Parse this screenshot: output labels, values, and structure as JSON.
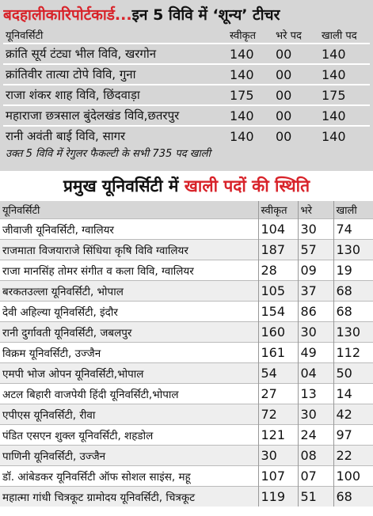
{
  "header": {
    "title_red": "बदहालीकारिपोर्टकार्ड...",
    "title_black": "इन 5 विवि में ‘शून्य’ टीचर"
  },
  "table1": {
    "columns": [
      "यूनिवर्सिटी",
      "स्वीकृत",
      "भरे पद",
      "खाली पद"
    ],
    "rows": [
      [
        "क्रांति सूर्य टंट्या भील विवि, खरगोन",
        "140",
        "00",
        "140"
      ],
      [
        "क्रांतिवीर तात्या टोपे विवि, गुना",
        "140",
        "00",
        "140"
      ],
      [
        "राजा शंकर शाह विवि, छिंदवाड़ा",
        "175",
        "00",
        "175"
      ],
      [
        "महाराजा छत्रसाल बुंदेलखंड विवि,छतरपुर",
        "140",
        "00",
        "140"
      ],
      [
        "रानी अवंती बाई विवि, सागर",
        "140",
        "00",
        "140"
      ]
    ],
    "note": "उक्त 5 विवि में रेगुलर फैकल्टी के सभी 735 पद खाली"
  },
  "section2": {
    "title_black": "प्रमुख यूनिवर्सिटी में ",
    "title_red": "खाली पदों की स्थिति"
  },
  "table2": {
    "columns": [
      "यूनिवर्सिटी",
      "स्वीकृत",
      "भरे",
      "खाली"
    ],
    "rows": [
      [
        "जीवाजी यूनिवर्सिटी, ग्वालियर",
        "104",
        "30",
        "74"
      ],
      [
        "राजमाता विजयाराजे सिंधिया कृषि विवि ग्वालियर",
        "187",
        "57",
        "130"
      ],
      [
        "राजा मानसिंह तोमर संगीत व कला विवि, ग्वालियर",
        "28",
        "09",
        "19"
      ],
      [
        "बरकतउल्ला यूनिवर्सिटी, भोपाल",
        "105",
        "37",
        "68"
      ],
      [
        "देवी अहिल्या यूनिवर्सिटी, इंदौर",
        "154",
        "86",
        "68"
      ],
      [
        "रानी दुर्गावती यूनिवर्सिटी, जबलपुर",
        "160",
        "30",
        "130"
      ],
      [
        "विक्रम यूनिवर्सिटी, उज्जैन",
        "161",
        "49",
        "112"
      ],
      [
        "एमपी भोज ओपन यूनिवर्सिटी,भोपाल",
        "54",
        "04",
        "50"
      ],
      [
        "अटल बिहारी वाजपेयी हिंदी यूनिवर्सिटी,भोपाल",
        "27",
        "13",
        "14"
      ],
      [
        "एपीएस यूनिवर्सिटी, रीवा",
        "72",
        "30",
        "42"
      ],
      [
        "पंडित एसएन शुक्ल यूनिवर्सिटी, शहडोल",
        "121",
        "24",
        "97"
      ],
      [
        "पाणिनी यूनिवर्सिटी, उज्जैन",
        "30",
        "08",
        "22"
      ],
      [
        "डॉ. आंबेडकर यूनिवर्सिटी ऑफ सोशल साइंस, महू",
        "107",
        "07",
        "100"
      ],
      [
        "महात्मा गांधी चित्रकूट ग्रामोदय यूनिवर्सिटी, चित्रकूट",
        "119",
        "51",
        "68"
      ]
    ]
  }
}
